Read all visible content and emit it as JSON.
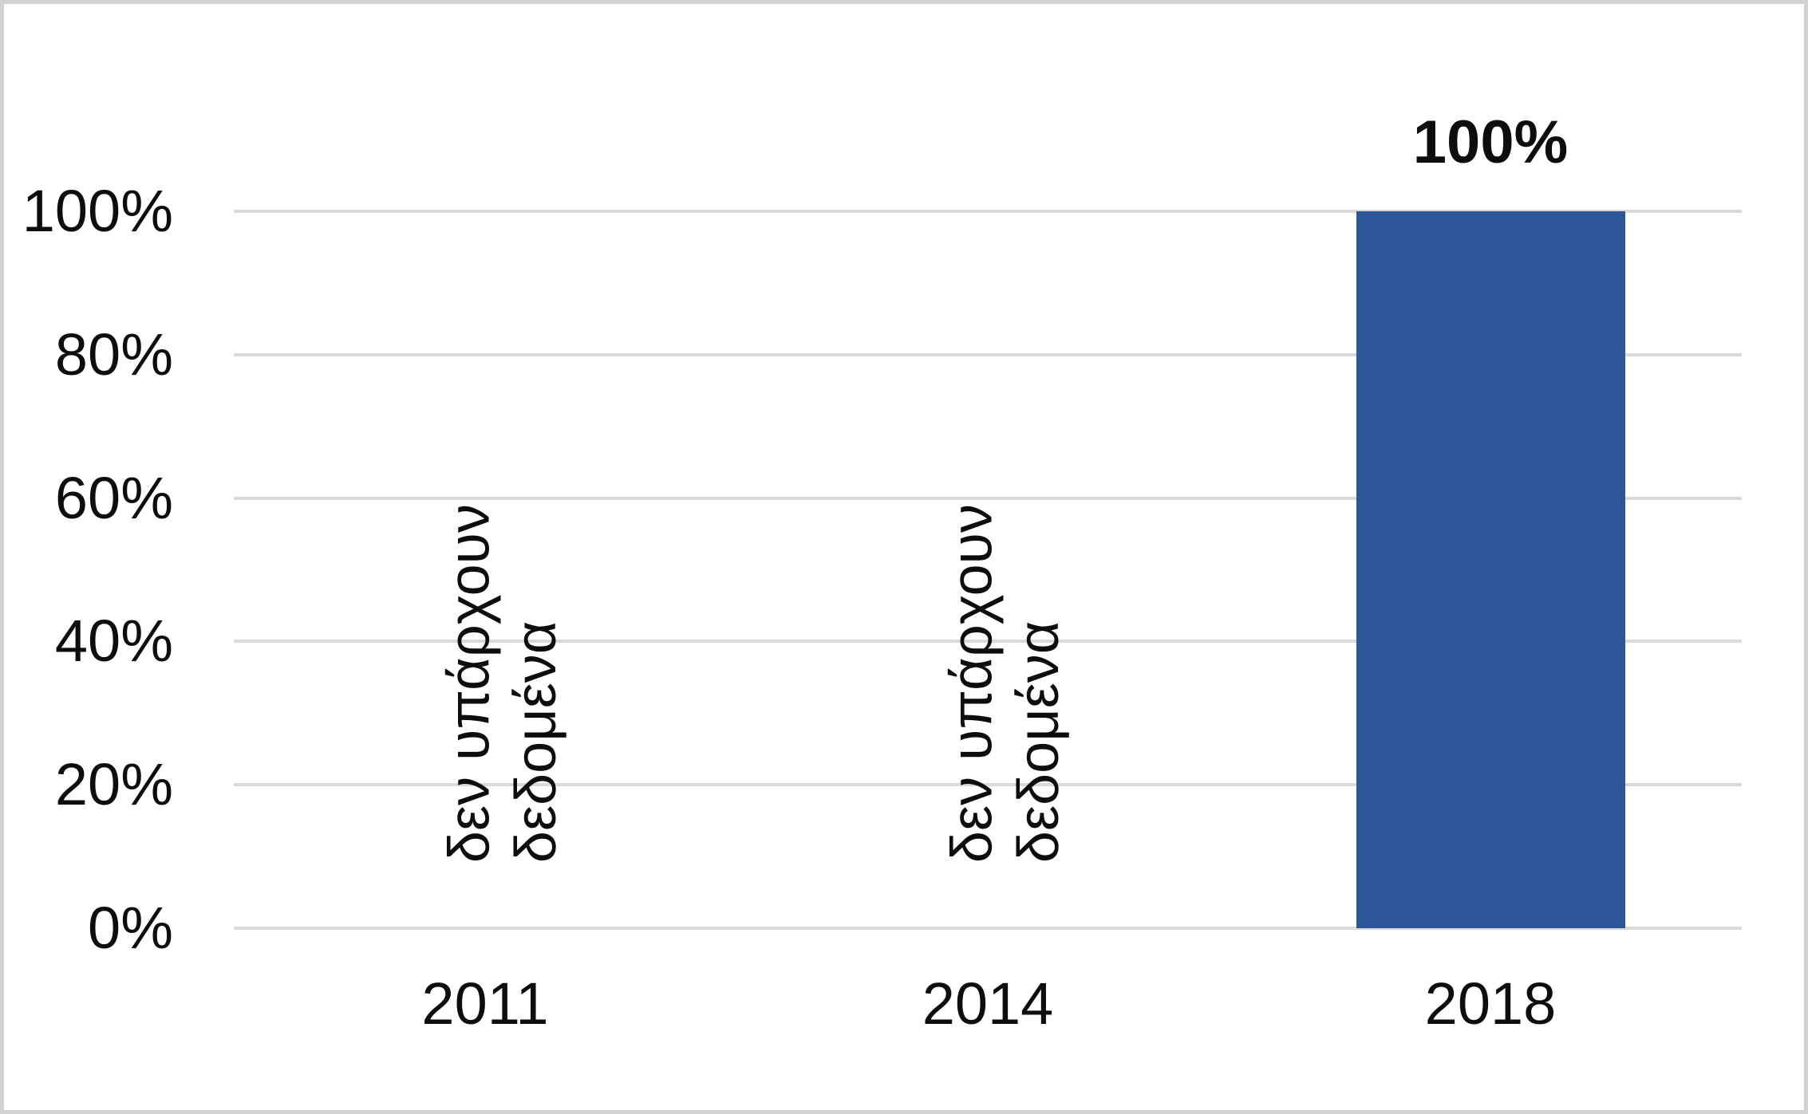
{
  "chart_data": {
    "type": "bar",
    "categories": [
      "2011",
      "2014",
      "2018"
    ],
    "values": [
      null,
      null,
      100
    ],
    "series": [
      {
        "name": "",
        "values": [
          null,
          null,
          100
        ]
      }
    ],
    "bar_label": "100%",
    "y_ticks": [
      "100%",
      "80%",
      "60%",
      "40%",
      "20%",
      "0%"
    ],
    "ylim": [
      0,
      100
    ],
    "grid": "horizontal",
    "legend": "none",
    "title": "",
    "xlabel": "",
    "ylabel": "",
    "bar_color": "#2e5696",
    "gridline_color": "#d9d9d9",
    "border_color": "#d2d2d2",
    "no_data_annotations": [
      {
        "category": "2011",
        "line1": "δεν υπάρχουν",
        "line2": "δεδομένα",
        "rotation_deg": -90
      },
      {
        "category": "2014",
        "line1": "δεν υπάρχουν",
        "line2": "δεδομένα",
        "rotation_deg": -90
      }
    ]
  }
}
